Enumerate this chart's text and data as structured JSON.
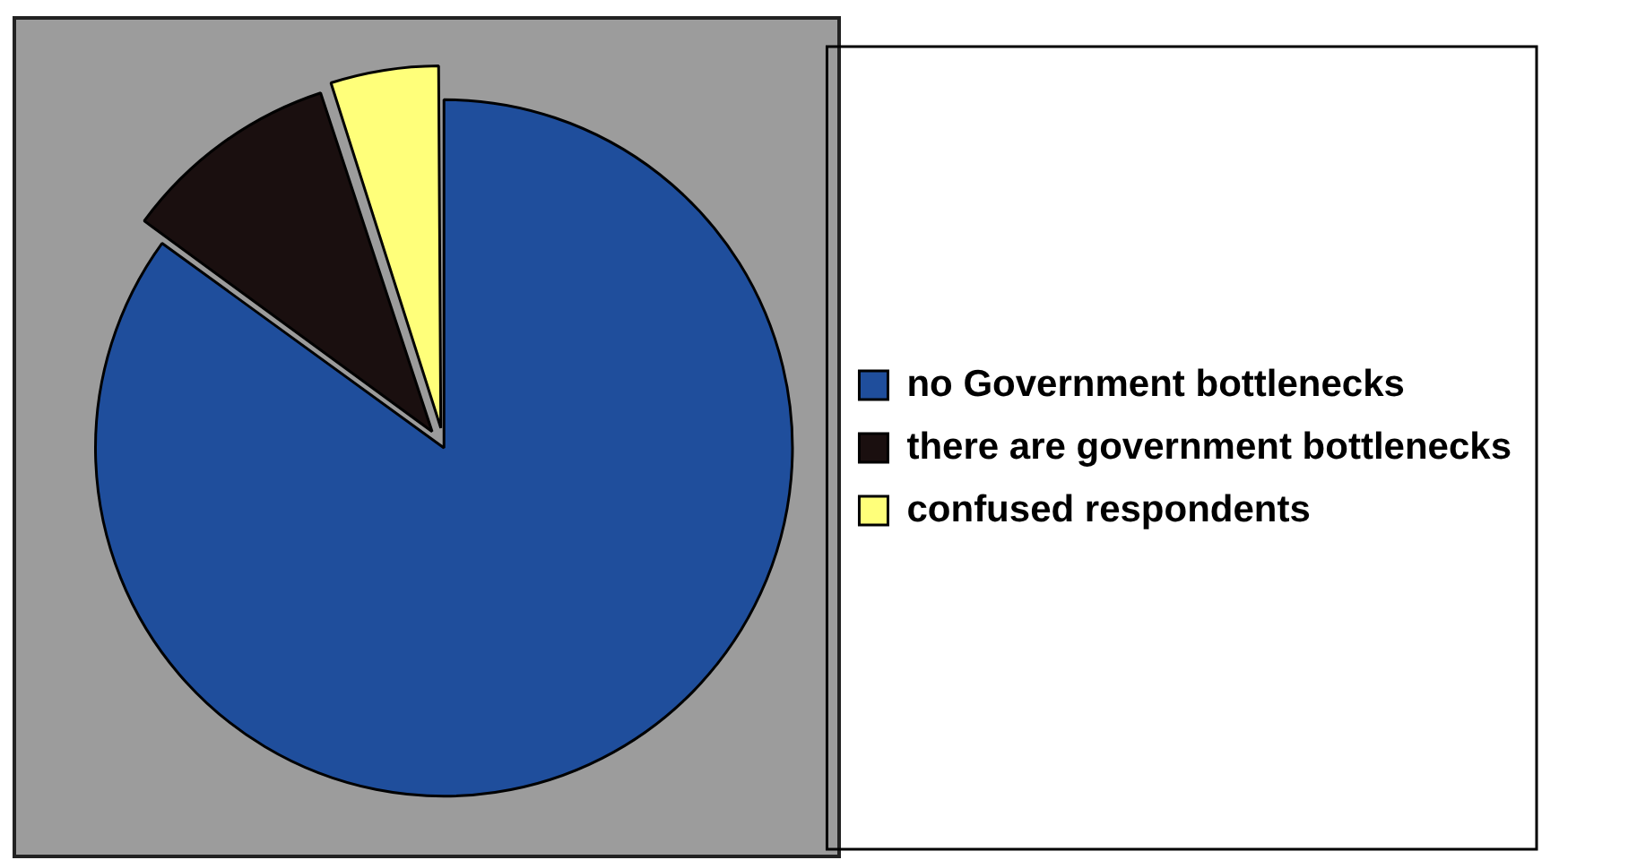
{
  "chart_data": {
    "type": "pie",
    "categories": [
      "no Government bottlenecks",
      "there are government bottlenecks",
      "confused respondents"
    ],
    "values": [
      85,
      10,
      5
    ],
    "colors": [
      "#1f4e9c",
      "#1a0f0f",
      "#ffff7a"
    ],
    "legend": "right"
  }
}
